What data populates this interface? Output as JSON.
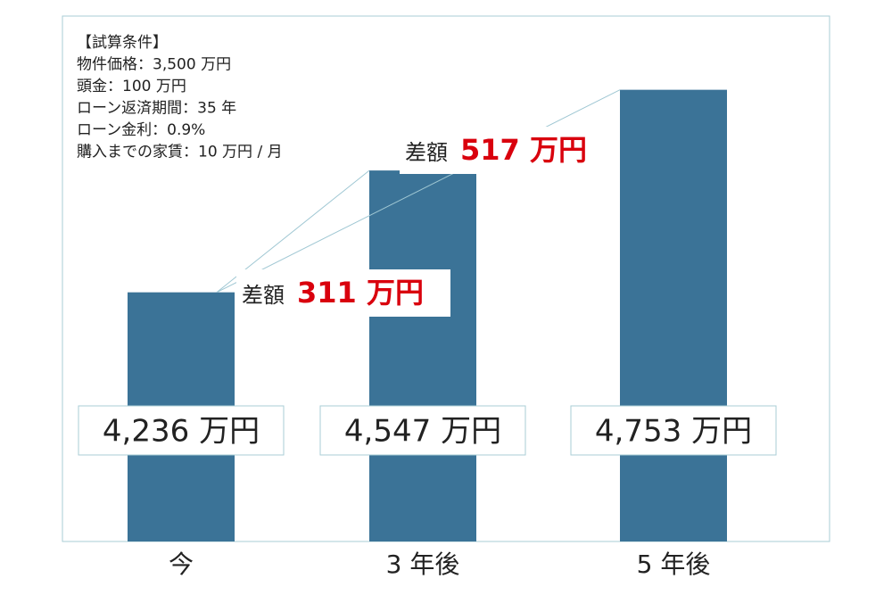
{
  "chart_data": {
    "type": "bar",
    "categories": [
      "今",
      "3 年後",
      "5 年後"
    ],
    "values": [
      4236,
      4547,
      4753
    ],
    "value_labels": [
      "4,236 万円",
      "4,547 万円",
      "4,753 万円"
    ],
    "color": "#3b7397",
    "ylim": [
      3600,
      4800
    ],
    "conditions": [
      "【試算条件】",
      "物件価格：3,500 万円",
      "頭金：100 万円",
      "ローン返済期間：35 年",
      "ローン金利：0.9%",
      "購入までの家賃：10 万円 / 月"
    ],
    "annotations": [
      {
        "text": "差額",
        "value": 311,
        "value_label": "311 万円"
      },
      {
        "text": "差額",
        "value": 517,
        "value_label": "517 万円"
      }
    ]
  }
}
